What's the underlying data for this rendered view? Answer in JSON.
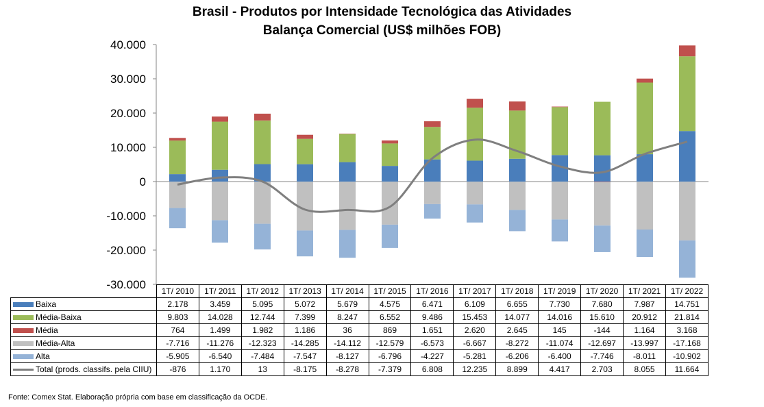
{
  "chart_data": {
    "type": "bar",
    "title": "Brasil - Produtos por Intensidade Tecnológica das Atividades",
    "subtitle": "Balança Comercial (US$ milhões FOB)",
    "categories": [
      "1T/ 2010",
      "1T/ 2011",
      "1T/ 2012",
      "1T/ 2013",
      "1T/ 2014",
      "1T/ 2015",
      "1T/ 2016",
      "1T/ 2017",
      "1T/ 2018",
      "1T/ 2019",
      "1T/ 2020",
      "1T/ 2021",
      "1T/ 2022"
    ],
    "ylim": [
      -30000,
      40000
    ],
    "yticks": [
      "-30.000",
      "-20.000",
      "-10.000",
      "0",
      "10.000",
      "20.000",
      "30.000",
      "40.000"
    ],
    "stacked": true,
    "grid": false,
    "legend_position": "table",
    "series": [
      {
        "name": "Baixa",
        "type": "bar",
        "color": "#4a7ebb",
        "values": [
          2178,
          3459,
          5095,
          5072,
          5679,
          4575,
          6471,
          6109,
          6655,
          7730,
          7680,
          7987,
          14751
        ],
        "labels": [
          "2.178",
          "3.459",
          "5.095",
          "5.072",
          "5.679",
          "4.575",
          "6.471",
          "6.109",
          "6.655",
          "7.730",
          "7.680",
          "7.987",
          "14.751"
        ]
      },
      {
        "name": "Média-Baixa",
        "type": "bar",
        "color": "#9bbb59",
        "values": [
          9803,
          14028,
          12744,
          7399,
          8247,
          6552,
          9486,
          15453,
          14077,
          14016,
          15610,
          20912,
          21814
        ],
        "labels": [
          "9.803",
          "14.028",
          "12.744",
          "7.399",
          "8.247",
          "6.552",
          "9.486",
          "15.453",
          "14.077",
          "14.016",
          "15.610",
          "20.912",
          "21.814"
        ]
      },
      {
        "name": "Média",
        "type": "bar",
        "color": "#c0504d",
        "values": [
          764,
          1499,
          1982,
          1186,
          36,
          869,
          1651,
          2620,
          2645,
          145,
          -144,
          1164,
          3168
        ],
        "labels": [
          "764",
          "1.499",
          "1.982",
          "1.186",
          "36",
          "869",
          "1.651",
          "2.620",
          "2.645",
          "145",
          "-144",
          "1.164",
          "3.168"
        ]
      },
      {
        "name": "Média-Alta",
        "type": "bar",
        "color": "#c0c0c0",
        "values": [
          -7716,
          -11276,
          -12323,
          -14285,
          -14112,
          -12579,
          -6573,
          -6667,
          -8272,
          -11074,
          -12697,
          -13997,
          -17168
        ],
        "labels": [
          "-7.716",
          "-11.276",
          "-12.323",
          "-14.285",
          "-14.112",
          "-12.579",
          "-6.573",
          "-6.667",
          "-8.272",
          "-11.074",
          "-12.697",
          "-13.997",
          "-17.168"
        ]
      },
      {
        "name": "Alta",
        "type": "bar",
        "color": "#95b3d7",
        "values": [
          -5905,
          -6540,
          -7484,
          -7547,
          -8127,
          -6796,
          -4227,
          -5281,
          -6206,
          -6400,
          -7746,
          -8011,
          -10902
        ],
        "labels": [
          "-5.905",
          "-6.540",
          "-7.484",
          "-7.547",
          "-8.127",
          "-6.796",
          "-4.227",
          "-5.281",
          "-6.206",
          "-6.400",
          "-7.746",
          "-8.011",
          "-10.902"
        ]
      },
      {
        "name": "Total (prods. classifs. pela CIIU)",
        "type": "line",
        "color": "#7f7f7f",
        "values": [
          -876,
          1170,
          13,
          -8175,
          -8278,
          -7379,
          6808,
          12235,
          8899,
          4417,
          2703,
          8055,
          11664
        ],
        "labels": [
          "-876",
          "1.170",
          "13",
          "-8.175",
          "-8.278",
          "-7.379",
          "6.808",
          "12.235",
          "8.899",
          "4.417",
          "2.703",
          "8.055",
          "11.664"
        ]
      }
    ]
  },
  "footnote": "Fonte: Comex Stat. Elaboração própria com base em classificação da OCDE."
}
